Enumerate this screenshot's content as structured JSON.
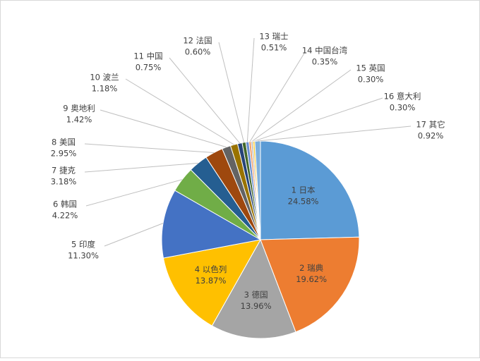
{
  "chart_data": {
    "type": "pie",
    "categories": [
      "1 日本",
      "2 瑞典",
      "3 德国",
      "4 以色列",
      "5 印度",
      "6 韩国",
      "7 捷克",
      "8 美国",
      "9 奥地利",
      "10 波兰",
      "11 中国",
      "12 法国",
      "13 瑞士",
      "14 中国台湾",
      "15 英国",
      "16 意大利",
      "17 其它"
    ],
    "values": [
      24.58,
      19.62,
      13.96,
      13.87,
      11.3,
      4.22,
      3.18,
      2.95,
      1.42,
      1.18,
      0.75,
      0.6,
      0.51,
      0.35,
      0.3,
      0.3,
      0.92
    ],
    "value_labels": [
      "24.58%",
      "19.62%",
      "13.96%",
      "13.87%",
      "11.30%",
      "4.22%",
      "3.18%",
      "2.95%",
      "1.42%",
      "1.18%",
      "0.75%",
      "0.60%",
      "0.51%",
      "0.35%",
      "0.30%",
      "0.30%",
      "0.92%"
    ],
    "colors": [
      "#5b9bd5",
      "#ed7d31",
      "#a5a5a5",
      "#ffc000",
      "#4472c4",
      "#70ad47",
      "#255e91",
      "#9e480e",
      "#636363",
      "#997300",
      "#264478",
      "#43682b",
      "#698ed0",
      "#f1975a",
      "#b7b7b7",
      "#ffcd33",
      "#7cafdd"
    ]
  }
}
